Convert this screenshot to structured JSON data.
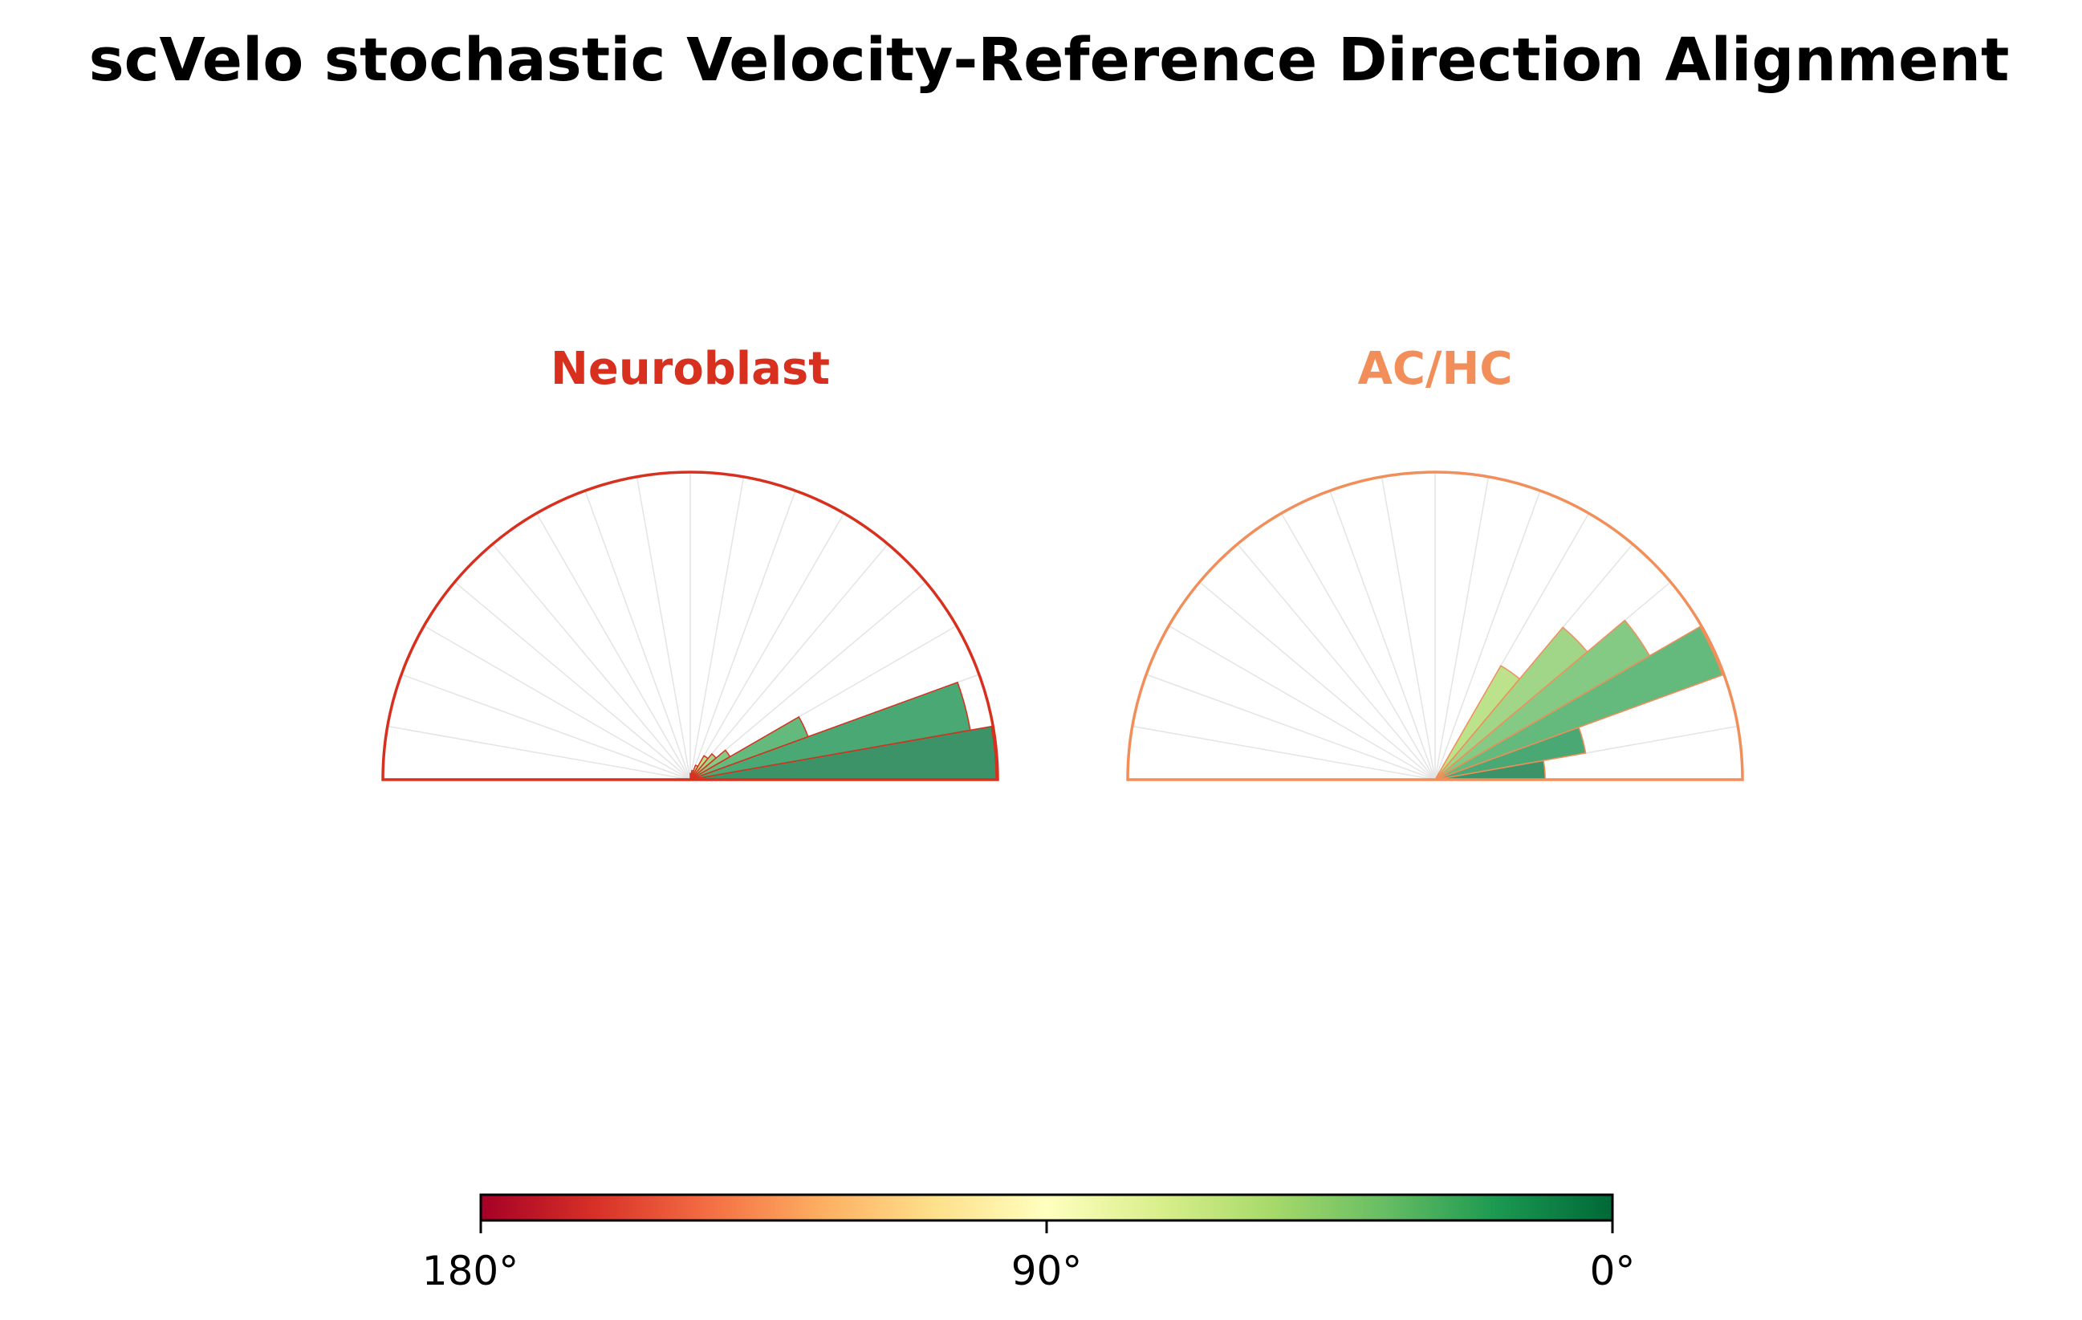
{
  "title": "scVelo stochastic Velocity-Reference Direction Alignment",
  "chart_data": {
    "type": "polar-bar",
    "angle_unit": "degrees",
    "angle_range": [
      0,
      180
    ],
    "bin_width_deg": 10,
    "bin_edges": [
      0,
      10,
      20,
      30,
      40,
      50,
      60,
      70,
      80,
      90,
      100,
      110,
      120,
      130,
      140,
      150,
      160,
      170,
      180
    ],
    "panels": [
      {
        "name": "Neuroblast",
        "title_color": "#d7301f",
        "outline_color": "#d7301f",
        "relative_counts": [
          1.0,
          0.93,
          0.41,
          0.15,
          0.11,
          0.09,
          0.05,
          0.03,
          0.02,
          0,
          0,
          0,
          0,
          0,
          0,
          0,
          0,
          0
        ]
      },
      {
        "name": "AC/HC",
        "title_color": "#f28e5a",
        "outline_color": "#f28e5a",
        "relative_counts": [
          0.36,
          0.5,
          1.0,
          0.81,
          0.65,
          0.43,
          0,
          0,
          0,
          0,
          0,
          0,
          0,
          0,
          0,
          0,
          0,
          0
        ]
      }
    ],
    "colorbar": {
      "colormap": "RdYlGn_r",
      "label_min": "180°",
      "label_mid": "90°",
      "label_max": "0°",
      "colors": [
        "#a50026",
        "#d73027",
        "#f46d43",
        "#fdae61",
        "#fee08b",
        "#ffffbf",
        "#d9ef8b",
        "#a6d96a",
        "#66bd63",
        "#1a9850",
        "#006837"
      ]
    }
  }
}
